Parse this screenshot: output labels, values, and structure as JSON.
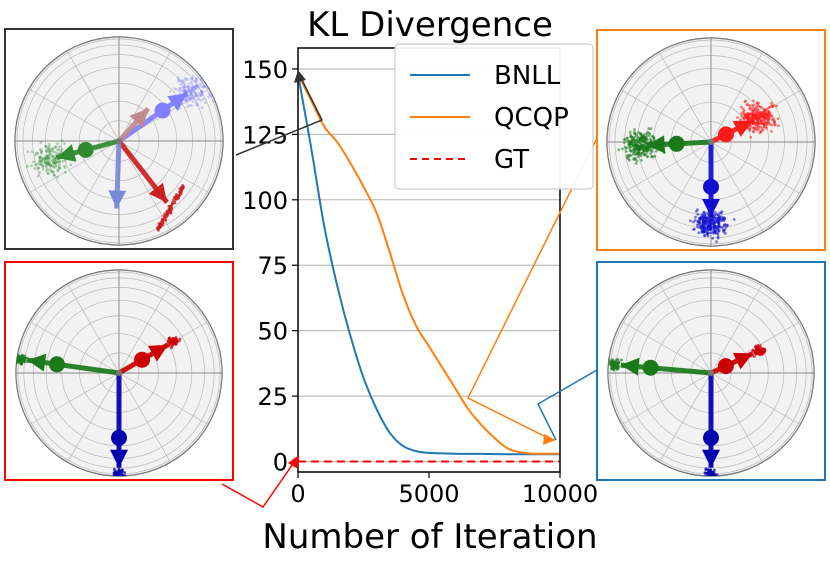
{
  "chart_data": {
    "type": "line",
    "title": "KL Divergence",
    "xlabel": "Number of Iteration",
    "ylabel": "",
    "xlim": [
      0,
      10000
    ],
    "ylim": [
      -4,
      158
    ],
    "x_ticks": [
      "0",
      "5000",
      "10000"
    ],
    "y_ticks": [
      "0",
      "25",
      "50",
      "75",
      "100",
      "125",
      "150"
    ],
    "grid": "horizontal",
    "legend_position": "top-right",
    "series": [
      {
        "name": "BNLL",
        "color": "#1f77b4",
        "style": "solid",
        "x": [
          0,
          500,
          1000,
          1500,
          2000,
          2500,
          3000,
          3500,
          4000,
          4500,
          5000,
          6000,
          7000,
          8000,
          9000,
          10000
        ],
        "y": [
          148,
          120,
          90,
          67,
          48,
          32,
          20,
          11,
          6,
          4,
          3.3,
          3.0,
          2.9,
          2.8,
          2.8,
          2.8
        ]
      },
      {
        "name": "QCQP",
        "color": "#ff7f0e",
        "style": "solid",
        "x": [
          0,
          500,
          1000,
          1500,
          2000,
          2500,
          3000,
          3500,
          4000,
          4500,
          5000,
          5500,
          6000,
          6500,
          7000,
          7500,
          8000,
          8500,
          9000,
          9500,
          10000
        ],
        "y": [
          148,
          138,
          128,
          122,
          114,
          105,
          95,
          80,
          64,
          52,
          44,
          36,
          28,
          20,
          14,
          9,
          5,
          3.5,
          3,
          3,
          3
        ]
      },
      {
        "name": "GT",
        "color": "#ff0000",
        "style": "dashed",
        "x": [
          0,
          10000
        ],
        "y": [
          0,
          0
        ]
      }
    ]
  },
  "insets": [
    {
      "id": "init",
      "border": "#333333",
      "vectors": [
        {
          "color": "#2e8b2e",
          "angle": 195,
          "len": 0.62,
          "cloud": "light"
        },
        {
          "color": "#8080ff",
          "angle": 35,
          "len": 0.8,
          "cloud": "light"
        },
        {
          "color": "#cc1f1f",
          "angle": -52,
          "len": 0.75,
          "cloud": "band"
        },
        {
          "color": "#7a8ad8",
          "angle": -92,
          "len": 0.65,
          "cloud": "none"
        },
        {
          "color": "#c28a8a",
          "angle": 48,
          "len": 0.42,
          "cloud": "none"
        }
      ]
    },
    {
      "id": "qcqp",
      "border": "#ff7f0e",
      "vectors": [
        {
          "color": "#1a7a1a",
          "angle": 183,
          "len": 0.62,
          "cloud": "dense"
        },
        {
          "color": "#ff1a1a",
          "angle": 27,
          "len": 0.45,
          "cloud": "dense"
        },
        {
          "color": "#1010d0",
          "angle": -90,
          "len": 0.72,
          "cloud": "dense"
        }
      ]
    },
    {
      "id": "gt",
      "border": "#ff0000",
      "vectors": [
        {
          "color": "#1a7a1a",
          "angle": 172,
          "len": 0.9,
          "cloud": "small"
        },
        {
          "color": "#cc0000",
          "angle": 30,
          "len": 0.55,
          "cloud": "small"
        },
        {
          "color": "#0000b0",
          "angle": -90,
          "len": 0.92,
          "cloud": "small"
        }
      ]
    },
    {
      "id": "bnll",
      "border": "#1f77b4",
      "vectors": [
        {
          "color": "#1a7a1a",
          "angle": 175,
          "len": 0.88,
          "cloud": "small"
        },
        {
          "color": "#cc0000",
          "angle": 25,
          "len": 0.45,
          "cloud": "small"
        },
        {
          "color": "#0000b0",
          "angle": -90,
          "len": 0.92,
          "cloud": "small"
        }
      ]
    }
  ]
}
